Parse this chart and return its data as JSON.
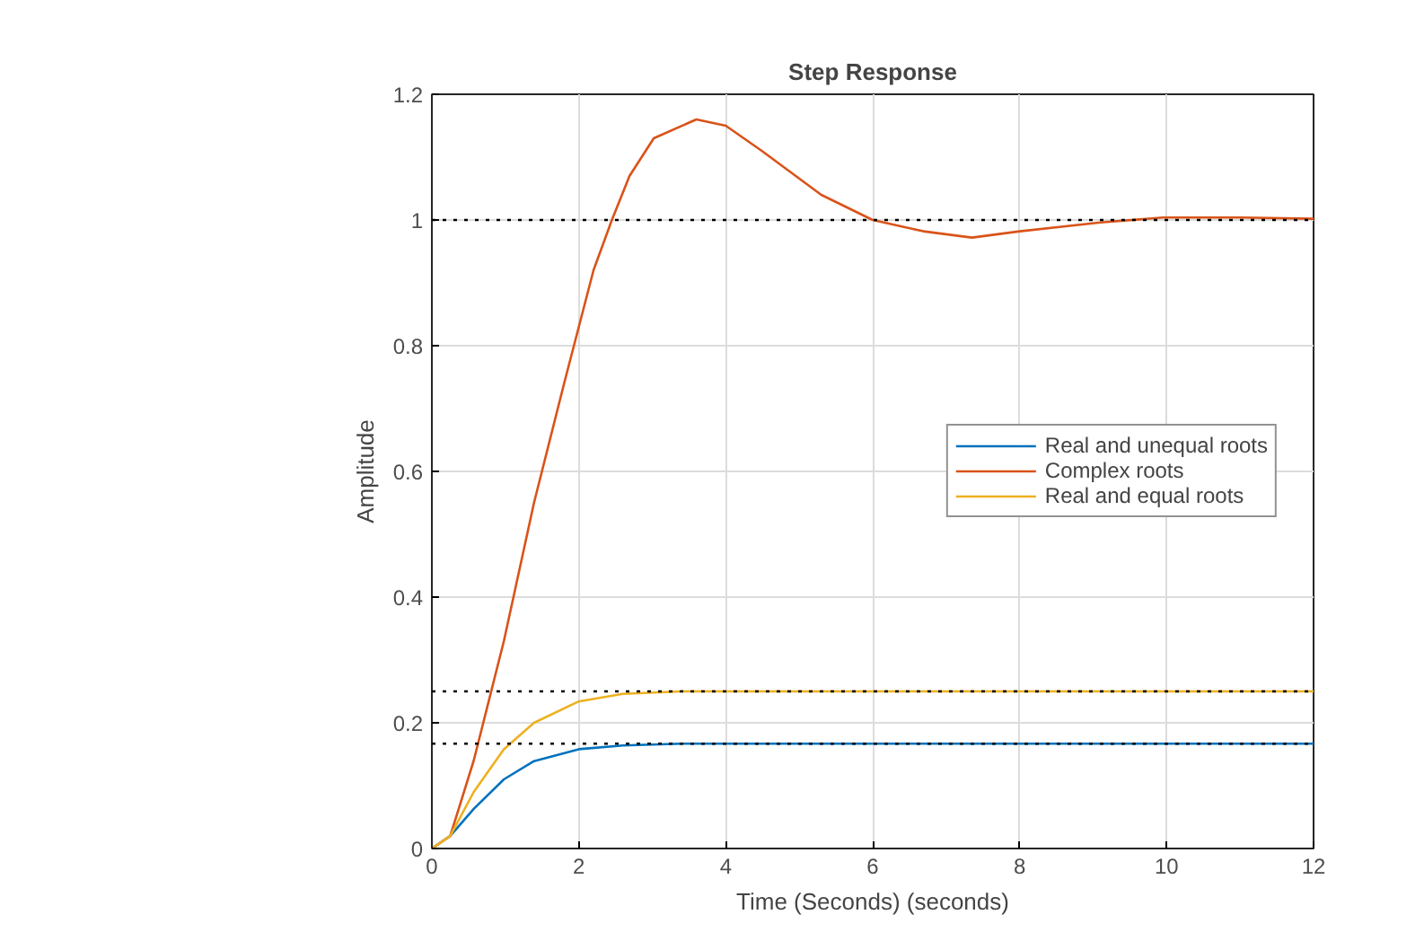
{
  "chart_data": {
    "type": "line",
    "title": "Step Response",
    "xlabel": "Time (Seconds) (seconds)",
    "ylabel": "Amplitude",
    "series": [
      {
        "name": "Real and unequal roots",
        "color": "#0072bd",
        "x": [
          0,
          0.25,
          0.57,
          0.98,
          1.39,
          2,
          2.6,
          3.4,
          4,
          6,
          8,
          10,
          12
        ],
        "values": [
          0,
          0.02,
          0.063,
          0.11,
          0.139,
          0.158,
          0.164,
          0.1667,
          0.1667,
          0.1667,
          0.1667,
          0.1667,
          0.1667
        ]
      },
      {
        "name": "Complex roots",
        "color": "#d95319",
        "x": [
          0,
          0.25,
          0.57,
          0.98,
          1.39,
          1.8,
          2.2,
          2.45,
          2.69,
          3.02,
          3.6,
          4,
          4.49,
          5.3,
          6,
          6.69,
          7.35,
          8,
          9.1,
          9.95,
          11,
          12
        ],
        "values": [
          0,
          0.02,
          0.14,
          0.33,
          0.55,
          0.74,
          0.92,
          1.0,
          1.07,
          1.13,
          1.16,
          1.15,
          1.11,
          1.04,
          1.0,
          0.982,
          0.972,
          0.982,
          0.996,
          1.004,
          1.004,
          1.002
        ]
      },
      {
        "name": "Real and equal roots",
        "color": "#edb120",
        "x": [
          0,
          0.25,
          0.57,
          0.98,
          1.39,
          2,
          2.6,
          3.4,
          4,
          6,
          8,
          10,
          12
        ],
        "values": [
          0,
          0.02,
          0.09,
          0.158,
          0.2,
          0.234,
          0.246,
          0.25,
          0.25,
          0.25,
          0.25,
          0.25,
          0.25
        ]
      }
    ],
    "ref_lines": [
      {
        "axis": "y",
        "value": 1,
        "color": "#000000",
        "line_style": "dotted"
      },
      {
        "axis": "y",
        "value": 0.25,
        "color": "#000000",
        "line_style": "dotted"
      },
      {
        "axis": "y",
        "value": 0.1667,
        "color": "#000000",
        "line_style": "dotted"
      }
    ],
    "xlim": [
      0,
      12
    ],
    "xticks": [
      0,
      2,
      4,
      6,
      8,
      10,
      12
    ],
    "ylim": [
      0,
      1.2
    ],
    "yticks": [
      0,
      0.2,
      0.4,
      0.6,
      0.8,
      1,
      1.2
    ],
    "grid": true,
    "legend": "right",
    "line_style": "solid",
    "marker": "none"
  }
}
